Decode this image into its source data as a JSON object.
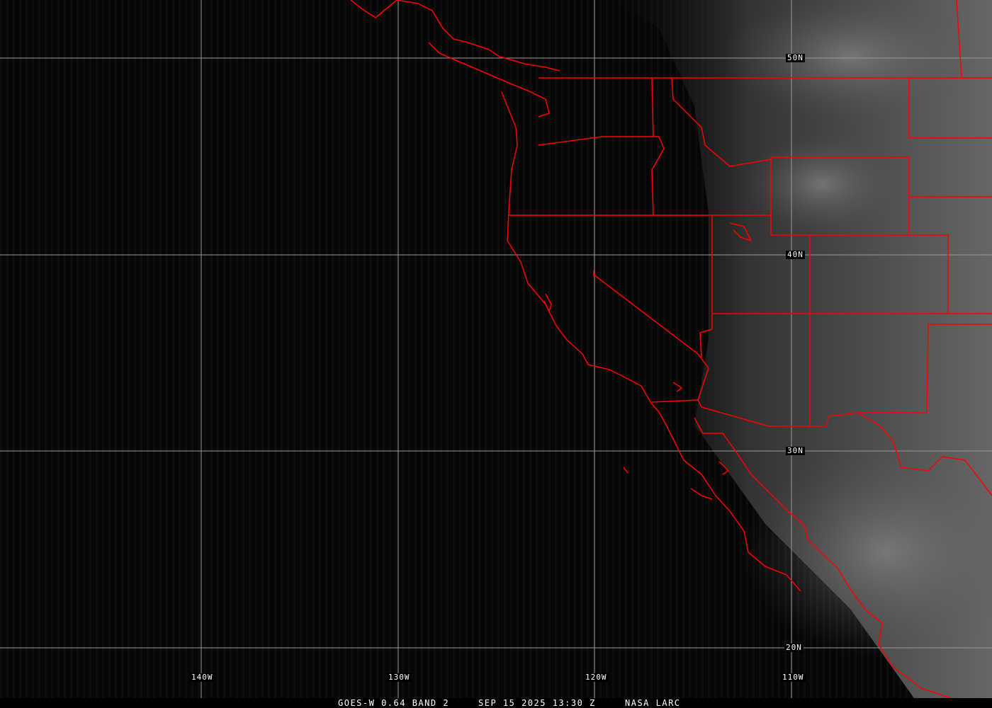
{
  "map": {
    "latitude_labels": [
      "50N",
      "40N",
      "30N",
      "20N"
    ],
    "longitude_labels": [
      "140W",
      "130W",
      "120W",
      "110W"
    ],
    "boundary_color": "#ff0000",
    "grid_color": "#9a9a9a"
  },
  "caption": {
    "satellite": "GOES-W 0.64 BAND 2",
    "datetime": "SEP 15 2025 13:30 Z",
    "source": "NASA LARC"
  }
}
